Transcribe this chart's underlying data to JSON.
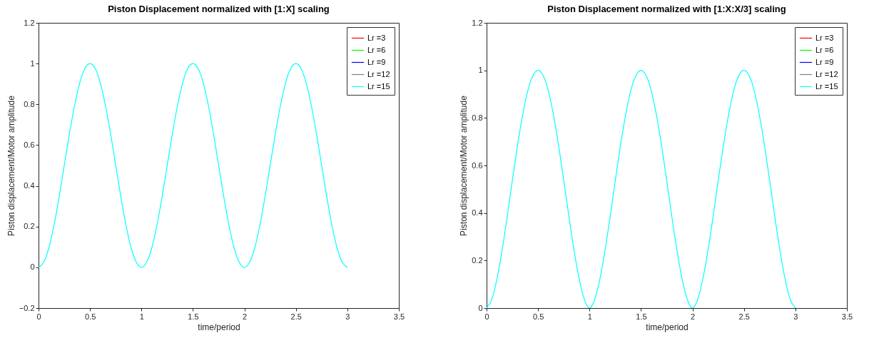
{
  "chart_data": [
    {
      "type": "line",
      "title": "Piston Displacement normalized with [1:X] scaling",
      "xlabel": "time/period",
      "ylabel": "Piston displacement/Motor amplitude",
      "xlim": [
        0,
        3.5
      ],
      "xticks": [
        0,
        0.5,
        1,
        1.5,
        2,
        2.5,
        3,
        3.5
      ],
      "ylim": [
        -0.2,
        1.2
      ],
      "yticks": [
        -0.2,
        0,
        0.2,
        0.4,
        0.6,
        0.8,
        1,
        1.2
      ],
      "legend": "top right",
      "x": [
        0,
        0.05,
        0.1,
        0.15,
        0.2,
        0.25,
        0.3,
        0.35,
        0.4,
        0.45,
        0.5,
        0.55,
        0.6,
        0.65,
        0.7,
        0.75,
        0.8,
        0.85,
        0.9,
        0.95,
        1,
        1.05,
        1.1,
        1.15,
        1.2,
        1.25,
        1.3,
        1.35,
        1.4,
        1.45,
        1.5,
        1.55,
        1.6,
        1.65,
        1.7,
        1.75,
        1.8,
        1.85,
        1.9,
        1.95,
        2,
        2.05,
        2.1,
        2.15,
        2.2,
        2.25,
        2.3,
        2.35,
        2.4,
        2.45,
        2.5,
        2.55,
        2.6,
        2.65,
        2.7,
        2.75,
        2.8,
        2.85,
        2.9,
        2.95,
        3
      ],
      "series": [
        {
          "name": "Lr =3",
          "color": "#ff0000",
          "values": [
            null,
            null,
            null,
            null,
            null,
            null,
            null,
            null,
            null,
            null,
            null,
            null,
            null,
            null,
            null,
            null,
            null,
            null,
            null,
            null,
            null,
            null,
            null,
            null,
            null,
            null,
            null,
            null,
            null,
            null,
            null,
            null,
            null,
            null,
            null,
            null,
            null,
            null,
            null,
            null,
            null,
            null,
            null,
            null,
            null,
            null,
            null,
            null,
            null,
            null,
            null,
            null,
            null,
            null,
            null,
            null,
            null,
            null,
            null,
            null,
            null
          ]
        },
        {
          "name": "Lr =6",
          "color": "#00ff00",
          "values": [
            null,
            null,
            null,
            null,
            null,
            null,
            null,
            null,
            null,
            null,
            null,
            null,
            null,
            null,
            null,
            null,
            null,
            null,
            null,
            null,
            null,
            null,
            null,
            null,
            null,
            null,
            null,
            null,
            null,
            null,
            null,
            null,
            null,
            null,
            null,
            null,
            null,
            null,
            null,
            null,
            null,
            null,
            null,
            null,
            null,
            null,
            null,
            null,
            null,
            null,
            null,
            null,
            null,
            null,
            null,
            null,
            null,
            null,
            null,
            null,
            null
          ]
        },
        {
          "name": "Lr =9",
          "color": "#0000ff",
          "values": [
            null,
            null,
            null,
            null,
            null,
            null,
            null,
            null,
            null,
            null,
            null,
            null,
            null,
            null,
            null,
            null,
            null,
            null,
            null,
            null,
            null,
            null,
            null,
            null,
            null,
            null,
            null,
            null,
            null,
            null,
            null,
            null,
            null,
            null,
            null,
            null,
            null,
            null,
            null,
            null,
            null,
            null,
            null,
            null,
            null,
            null,
            null,
            null,
            null,
            null,
            null,
            null,
            null,
            null,
            null,
            null,
            null,
            null,
            null,
            null,
            null
          ]
        },
        {
          "name": "Lr =12",
          "color": "#808080",
          "values": [
            null,
            null,
            null,
            null,
            null,
            null,
            null,
            null,
            null,
            null,
            null,
            null,
            null,
            null,
            null,
            null,
            null,
            null,
            null,
            null,
            null,
            null,
            null,
            null,
            null,
            null,
            null,
            null,
            null,
            null,
            null,
            null,
            null,
            null,
            null,
            null,
            null,
            null,
            null,
            null,
            null,
            null,
            null,
            null,
            null,
            null,
            null,
            null,
            null,
            null,
            null,
            null,
            null,
            null,
            null,
            null,
            null,
            null,
            null,
            null,
            null
          ]
        },
        {
          "name": "Lr =15",
          "color": "#00ffff",
          "values": [
            0,
            0.025,
            0.095,
            0.206,
            0.345,
            0.5,
            0.655,
            0.794,
            0.905,
            0.976,
            1,
            0.976,
            0.905,
            0.794,
            0.655,
            0.5,
            0.345,
            0.206,
            0.095,
            0.025,
            0,
            0.025,
            0.095,
            0.206,
            0.345,
            0.5,
            0.655,
            0.794,
            0.905,
            0.976,
            1,
            0.976,
            0.905,
            0.794,
            0.655,
            0.5,
            0.345,
            0.206,
            0.095,
            0.025,
            0,
            0.025,
            0.095,
            0.206,
            0.345,
            0.5,
            0.655,
            0.794,
            0.905,
            0.976,
            1,
            0.976,
            0.905,
            0.794,
            0.655,
            0.5,
            0.345,
            0.206,
            0.095,
            0.025,
            0
          ]
        }
      ]
    },
    {
      "type": "line",
      "title": "Piston Displacement normalized with [1:X:X/3] scaling",
      "xlabel": "time/period",
      "ylabel": "Piston displacement/Motor amplitude",
      "xlim": [
        0,
        3.5
      ],
      "xticks": [
        0,
        0.5,
        1,
        1.5,
        2,
        2.5,
        3,
        3.5
      ],
      "ylim": [
        0,
        1.2
      ],
      "yticks": [
        0,
        0.2,
        0.4,
        0.6,
        0.8,
        1,
        1.2
      ],
      "legend": "top right",
      "x": [
        0,
        0.05,
        0.1,
        0.15,
        0.2,
        0.25,
        0.3,
        0.35,
        0.4,
        0.45,
        0.5,
        0.55,
        0.6,
        0.65,
        0.7,
        0.75,
        0.8,
        0.85,
        0.9,
        0.95,
        1,
        1.05,
        1.1,
        1.15,
        1.2,
        1.25,
        1.3,
        1.35,
        1.4,
        1.45,
        1.5,
        1.55,
        1.6,
        1.65,
        1.7,
        1.75,
        1.8,
        1.85,
        1.9,
        1.95,
        2,
        2.05,
        2.1,
        2.15,
        2.2,
        2.25,
        2.3,
        2.35,
        2.4,
        2.45,
        2.5,
        2.55,
        2.6,
        2.65,
        2.7,
        2.75,
        2.8,
        2.85,
        2.9,
        2.95,
        3
      ],
      "series": [
        {
          "name": "Lr =3",
          "color": "#ff0000",
          "values": [
            null,
            null,
            null,
            null,
            null,
            null,
            null,
            null,
            null,
            null,
            null,
            null,
            null,
            null,
            null,
            null,
            null,
            null,
            null,
            null,
            null,
            null,
            null,
            null,
            null,
            null,
            null,
            null,
            null,
            null,
            null,
            null,
            null,
            null,
            null,
            null,
            null,
            null,
            null,
            null,
            null,
            null,
            null,
            null,
            null,
            null,
            null,
            null,
            null,
            null,
            null,
            null,
            null,
            null,
            null,
            null,
            null,
            null,
            null,
            null,
            null
          ]
        },
        {
          "name": "Lr =6",
          "color": "#00ff00",
          "values": [
            null,
            null,
            null,
            null,
            null,
            null,
            null,
            null,
            null,
            null,
            null,
            null,
            null,
            null,
            null,
            null,
            null,
            null,
            null,
            null,
            null,
            null,
            null,
            null,
            null,
            null,
            null,
            null,
            null,
            null,
            null,
            null,
            null,
            null,
            null,
            null,
            null,
            null,
            null,
            null,
            null,
            null,
            null,
            null,
            null,
            null,
            null,
            null,
            null,
            null,
            null,
            null,
            null,
            null,
            null,
            null,
            null,
            null,
            null,
            null,
            null
          ]
        },
        {
          "name": "Lr =9",
          "color": "#0000ff",
          "values": [
            null,
            null,
            null,
            null,
            null,
            null,
            null,
            null,
            null,
            null,
            null,
            null,
            null,
            null,
            null,
            null,
            null,
            null,
            null,
            null,
            null,
            null,
            null,
            null,
            null,
            null,
            null,
            null,
            null,
            null,
            null,
            null,
            null,
            null,
            null,
            null,
            null,
            null,
            null,
            null,
            null,
            null,
            null,
            null,
            null,
            null,
            null,
            null,
            null,
            null,
            null,
            null,
            null,
            null,
            null,
            null,
            null,
            null,
            null,
            null,
            null
          ]
        },
        {
          "name": "Lr =12",
          "color": "#808080",
          "values": [
            null,
            null,
            null,
            null,
            null,
            null,
            null,
            null,
            null,
            null,
            null,
            null,
            null,
            null,
            null,
            null,
            null,
            null,
            null,
            null,
            null,
            null,
            null,
            null,
            null,
            null,
            null,
            null,
            null,
            null,
            null,
            null,
            null,
            null,
            null,
            null,
            null,
            null,
            null,
            null,
            null,
            null,
            null,
            null,
            null,
            null,
            null,
            null,
            null,
            null,
            null,
            null,
            null,
            null,
            null,
            null,
            null,
            null,
            null,
            null,
            null
          ]
        },
        {
          "name": "Lr =15",
          "color": "#00ffff",
          "values": [
            0,
            0.036,
            0.121,
            0.241,
            0.384,
            0.536,
            0.683,
            0.812,
            0.914,
            0.978,
            1,
            0.978,
            0.914,
            0.812,
            0.683,
            0.536,
            0.384,
            0.241,
            0.121,
            0.036,
            0,
            0.036,
            0.121,
            0.241,
            0.384,
            0.536,
            0.683,
            0.812,
            0.914,
            0.978,
            1,
            0.978,
            0.914,
            0.812,
            0.683,
            0.536,
            0.384,
            0.241,
            0.121,
            0.036,
            0,
            0.036,
            0.121,
            0.241,
            0.384,
            0.536,
            0.683,
            0.812,
            0.914,
            0.978,
            1,
            0.978,
            0.914,
            0.812,
            0.683,
            0.536,
            0.384,
            0.241,
            0.121,
            0.036,
            0
          ]
        }
      ]
    }
  ]
}
